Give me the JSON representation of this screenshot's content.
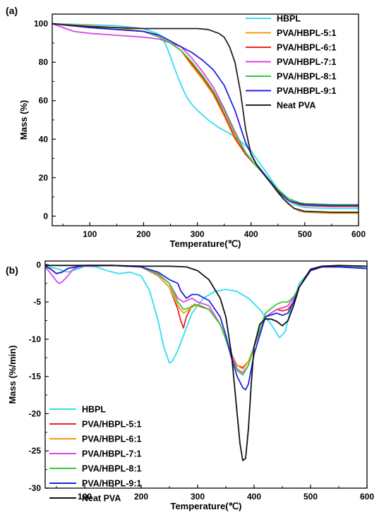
{
  "chart_data": [
    {
      "type": "line",
      "panel": "(a)",
      "xlabel": "Temperature(℃)",
      "ylabel": "Mass (%)",
      "xlim": [
        30,
        600
      ],
      "ylim": [
        -5,
        105
      ],
      "xticks": [
        100,
        200,
        300,
        400,
        500,
        600
      ],
      "yticks": [
        0,
        20,
        40,
        60,
        80,
        100
      ],
      "legend_position": "top-right",
      "series": [
        {
          "name": "HBPL",
          "color": "#33ddee",
          "x": [
            30,
            100,
            150,
            200,
            225,
            240,
            250,
            260,
            270,
            280,
            290,
            300,
            320,
            340,
            360,
            380,
            400,
            420,
            440,
            460,
            480,
            500,
            550,
            600
          ],
          "y": [
            100,
            99.5,
            99,
            97.5,
            95,
            90,
            83,
            75,
            68,
            62,
            58,
            55,
            50,
            46,
            43,
            39,
            34,
            26,
            18,
            10,
            6,
            4.5,
            4,
            4
          ]
        },
        {
          "name": "PVA/HBPL-5:1",
          "color": "#f39c12",
          "x": [
            30,
            100,
            150,
            200,
            230,
            250,
            270,
            290,
            310,
            330,
            350,
            370,
            390,
            410,
            430,
            450,
            470,
            490,
            500,
            550,
            600
          ],
          "y": [
            100,
            99,
            98,
            96,
            93,
            90,
            86,
            78,
            71,
            63,
            52,
            40,
            32,
            26,
            20,
            12,
            6,
            2.5,
            2,
            1.5,
            1.5
          ]
        },
        {
          "name": "PVA/HBPL-6:1",
          "color": "#ee2222",
          "x": [
            30,
            100,
            150,
            200,
            230,
            250,
            270,
            290,
            310,
            330,
            350,
            370,
            390,
            410,
            430,
            450,
            470,
            490,
            500,
            550,
            600
          ],
          "y": [
            100,
            98,
            97,
            96,
            93,
            90,
            86,
            79,
            72,
            64,
            53,
            41,
            32,
            26,
            20,
            13,
            8,
            6,
            5.5,
            5,
            5
          ]
        },
        {
          "name": "PVA/HBPL-7:1",
          "color": "#dd44ee",
          "x": [
            30,
            50,
            70,
            100,
            150,
            200,
            230,
            250,
            270,
            290,
            310,
            330,
            350,
            370,
            390,
            410,
            430,
            450,
            470,
            490,
            500,
            550,
            600
          ],
          "y": [
            100,
            98,
            96,
            95,
            94,
            93,
            92,
            90,
            88,
            82,
            75,
            67,
            56,
            44,
            33,
            26,
            20,
            13,
            9,
            7,
            6.5,
            6,
            5.5
          ]
        },
        {
          "name": "PVA/HBPL-8:1",
          "color": "#33cc33",
          "x": [
            30,
            100,
            150,
            200,
            230,
            250,
            270,
            290,
            310,
            330,
            350,
            370,
            390,
            410,
            430,
            450,
            470,
            490,
            500,
            550,
            600
          ],
          "y": [
            100,
            98,
            97,
            96,
            93,
            90,
            86,
            80,
            73,
            65,
            55,
            43,
            33,
            26,
            20,
            14,
            9,
            7,
            6.5,
            6,
            6
          ]
        },
        {
          "name": "PVA/HBPL-9:1",
          "color": "#2222dd",
          "x": [
            30,
            100,
            150,
            200,
            230,
            250,
            270,
            290,
            310,
            330,
            350,
            370,
            390,
            410,
            430,
            450,
            470,
            490,
            500,
            550,
            600
          ],
          "y": [
            100,
            98,
            97,
            96,
            94,
            91,
            88,
            85,
            81,
            76,
            68,
            55,
            38,
            27,
            20,
            13,
            8,
            6.5,
            6,
            5.5,
            5.5
          ]
        },
        {
          "name": "Neat PVA",
          "color": "#222222",
          "x": [
            30,
            100,
            200,
            250,
            300,
            320,
            340,
            350,
            360,
            370,
            380,
            390,
            400,
            410,
            420,
            440,
            460,
            480,
            500,
            550,
            600
          ],
          "y": [
            100,
            98.5,
            97.5,
            97.5,
            97.5,
            97,
            95,
            93,
            88,
            80,
            65,
            45,
            32,
            27,
            23,
            16,
            9,
            4,
            2.5,
            2,
            2
          ]
        }
      ]
    },
    {
      "type": "line",
      "panel": "(b)",
      "xlabel": "Temperature(℃)",
      "ylabel": "Mass (%/min)",
      "xlim": [
        30,
        600
      ],
      "ylim": [
        -30,
        0.5
      ],
      "xticks": [
        100,
        200,
        300,
        400,
        500,
        600
      ],
      "yticks": [
        0,
        -5,
        -10,
        -15,
        -20,
        -25,
        -30
      ],
      "legend_position": "bottom-left",
      "series": [
        {
          "name": "HBPL",
          "color": "#33ddee",
          "x": [
            30,
            50,
            70,
            90,
            100,
            120,
            140,
            160,
            180,
            200,
            215,
            230,
            240,
            250,
            255,
            265,
            275,
            290,
            310,
            330,
            350,
            370,
            390,
            410,
            430,
            445,
            455,
            465,
            480,
            500,
            520,
            550,
            580,
            600
          ],
          "y": [
            -0.2,
            -0.5,
            -1,
            -0.5,
            -0.2,
            -0.3,
            -0.8,
            -1.2,
            -1.0,
            -1.5,
            -3.5,
            -7.5,
            -11,
            -13.2,
            -13,
            -11.5,
            -9.5,
            -6.5,
            -4.5,
            -3.6,
            -3.3,
            -3.6,
            -4.5,
            -6,
            -8,
            -9.8,
            -9,
            -6,
            -2.5,
            -0.8,
            -0.3,
            -0.2,
            -0.2,
            -0.5
          ]
        },
        {
          "name": "PVA/HBPL-5:1",
          "color": "#ee2222",
          "x": [
            30,
            40,
            50,
            60,
            70,
            90,
            100,
            150,
            200,
            230,
            250,
            265,
            270,
            275,
            280,
            290,
            300,
            320,
            340,
            350,
            360,
            370,
            380,
            390,
            400,
            420,
            440,
            450,
            460,
            470,
            480,
            500,
            520,
            550,
            600
          ],
          "y": [
            -0.2,
            -0.6,
            -1.2,
            -1.0,
            -0.5,
            -0.2,
            -0.1,
            -0.1,
            -0.3,
            -1.5,
            -3,
            -6,
            -7.5,
            -8.5,
            -7,
            -5.5,
            -5.5,
            -6,
            -8,
            -10,
            -12,
            -13.5,
            -13.8,
            -13,
            -11,
            -7,
            -6,
            -6.2,
            -6,
            -5,
            -3,
            -0.8,
            -0.3,
            -0.3,
            -0.5
          ]
        },
        {
          "name": "PVA/HBPL-6:1",
          "color": "#f39c12",
          "x": [
            30,
            40,
            50,
            60,
            70,
            90,
            100,
            150,
            200,
            230,
            250,
            265,
            275,
            285,
            295,
            305,
            320,
            340,
            350,
            360,
            370,
            380,
            390,
            400,
            420,
            440,
            450,
            460,
            470,
            480,
            500,
            520,
            550,
            600
          ],
          "y": [
            -0.2,
            -0.6,
            -1.2,
            -1.0,
            -0.5,
            -0.2,
            -0.1,
            -0.1,
            -0.3,
            -1.5,
            -3,
            -5.5,
            -6.5,
            -6,
            -5.5,
            -5.5,
            -6,
            -8,
            -10,
            -12,
            -13.5,
            -14,
            -13,
            -11,
            -7,
            -6,
            -5.8,
            -5.5,
            -4.5,
            -3,
            -0.8,
            -0.3,
            -0.3,
            -0.5
          ]
        },
        {
          "name": "PVA/HBPL-7:1",
          "color": "#dd44ee",
          "x": [
            30,
            40,
            50,
            55,
            60,
            70,
            80,
            90,
            100,
            150,
            200,
            230,
            250,
            265,
            275,
            290,
            300,
            320,
            340,
            360,
            370,
            380,
            390,
            400,
            420,
            440,
            450,
            460,
            470,
            480,
            500,
            520,
            550,
            600
          ],
          "y": [
            -0.3,
            -1.2,
            -2.2,
            -2.5,
            -2.3,
            -1.5,
            -0.6,
            -0.3,
            -0.2,
            -0.1,
            -0.3,
            -1.3,
            -2.5,
            -4.5,
            -5,
            -4.5,
            -5,
            -5.5,
            -8,
            -12,
            -14,
            -14.5,
            -13.5,
            -11,
            -7,
            -6,
            -5.8,
            -5.5,
            -4.5,
            -3,
            -0.8,
            -0.3,
            -0.3,
            -0.5
          ]
        },
        {
          "name": "PVA/HBPL-8:1",
          "color": "#33cc33",
          "x": [
            30,
            40,
            50,
            60,
            70,
            90,
            100,
            150,
            200,
            230,
            250,
            265,
            275,
            285,
            295,
            305,
            320,
            340,
            350,
            360,
            370,
            380,
            390,
            400,
            420,
            440,
            450,
            460,
            470,
            480,
            500,
            520,
            550,
            600
          ],
          "y": [
            -0.2,
            -0.6,
            -1.2,
            -1.0,
            -0.5,
            -0.2,
            -0.1,
            -0.1,
            -0.3,
            -1.2,
            -2.5,
            -5,
            -6,
            -5.8,
            -5.3,
            -5.5,
            -6,
            -8,
            -10,
            -12.5,
            -14.2,
            -14.8,
            -13.5,
            -11,
            -6.5,
            -5.3,
            -5,
            -5,
            -4.3,
            -3,
            -0.8,
            -0.3,
            -0.3,
            -0.5
          ]
        },
        {
          "name": "PVA/HBPL-9:1",
          "color": "#2222dd",
          "x": [
            30,
            40,
            50,
            60,
            70,
            90,
            100,
            150,
            200,
            230,
            250,
            265,
            270,
            280,
            290,
            300,
            320,
            340,
            350,
            360,
            370,
            380,
            385,
            390,
            400,
            420,
            440,
            450,
            460,
            470,
            480,
            500,
            520,
            550,
            600
          ],
          "y": [
            -0.2,
            -0.6,
            -1.2,
            -1.0,
            -0.5,
            -0.2,
            -0.1,
            -0.1,
            -0.3,
            -1,
            -2,
            -2.5,
            -3.5,
            -4.5,
            -4,
            -4,
            -4.8,
            -7,
            -9.5,
            -12.5,
            -15,
            -16.5,
            -16.8,
            -16,
            -12,
            -7,
            -6.5,
            -6.8,
            -6.5,
            -5,
            -3,
            -0.8,
            -0.3,
            -0.3,
            -0.5
          ]
        },
        {
          "name": "Neat PVA",
          "color": "#111111",
          "x": [
            30,
            100,
            150,
            200,
            250,
            280,
            300,
            320,
            340,
            350,
            360,
            365,
            370,
            375,
            380,
            385,
            390,
            395,
            400,
            410,
            420,
            430,
            440,
            450,
            460,
            470,
            480,
            500,
            520,
            550,
            600
          ],
          "y": [
            -0.1,
            -0.1,
            -0.1,
            -0.2,
            -0.2,
            -0.3,
            -0.8,
            -2,
            -4.5,
            -7,
            -12,
            -16,
            -20,
            -24,
            -26.3,
            -26,
            -22,
            -16,
            -11,
            -8,
            -7.3,
            -7.3,
            -7.6,
            -8.2,
            -7.5,
            -5.5,
            -3,
            -0.6,
            -0.2,
            -0.1,
            -0.2
          ]
        }
      ]
    }
  ]
}
